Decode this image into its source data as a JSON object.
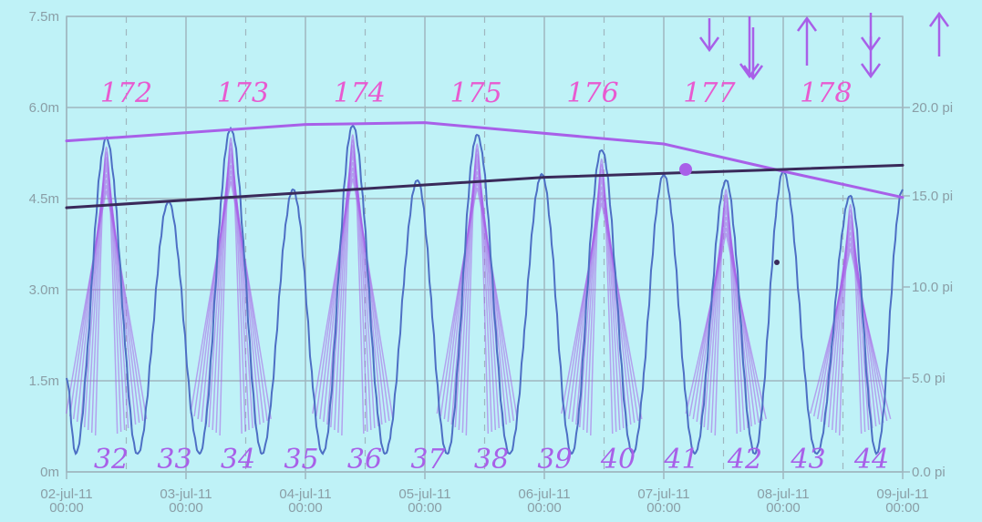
{
  "chart_data": {
    "type": "line",
    "left_axis": {
      "ticks": [
        "0m",
        "1.5m",
        "3.0m",
        "4.5m",
        "6.0m",
        "7.5m"
      ],
      "values": [
        0,
        1.5,
        3.0,
        4.5,
        6.0,
        7.5
      ],
      "ylim": [
        0,
        7.5
      ]
    },
    "right_axis": {
      "ticks": [
        "0.0 pi",
        "5.0 pi",
        "10.0 pi",
        "15.0 pi",
        "20.0 pi"
      ],
      "values": [
        0,
        5,
        10,
        15,
        20
      ]
    },
    "x_ticks": [
      {
        "date": "02-jul-11",
        "time": "00:00"
      },
      {
        "date": "03-jul-11",
        "time": "00:00"
      },
      {
        "date": "04-jul-11",
        "time": "00:00"
      },
      {
        "date": "05-jul-11",
        "time": "00:00"
      },
      {
        "date": "06-jul-11",
        "time": "00:00"
      },
      {
        "date": "07-jul-11",
        "time": "00:00"
      },
      {
        "date": "08-jul-11",
        "time": "00:00"
      },
      {
        "date": "09-jul-11",
        "time": "00:00"
      }
    ],
    "xlim": [
      "2011-07-02 00:00",
      "2011-07-09 00:00"
    ],
    "grid": true,
    "series": [
      {
        "color": "#4d6fc4",
        "high_water_times": [
          "2011-07-02 08:00",
          "2011-07-02 20:30",
          "2011-07-03 09:00",
          "2011-07-03 21:30",
          "2011-07-04 09:30",
          "2011-07-04 22:30",
          "2011-07-05 10:30",
          "2011-07-05 23:30",
          "2011-07-06 11:30",
          "2011-07-07 00:00",
          "2011-07-07 12:30",
          "2011-07-08 00:00",
          "2011-07-08 13:30",
          "2011-07-09 00:00"
        ],
        "high_water_levels_m": [
          5.5,
          4.45,
          5.65,
          4.65,
          5.7,
          4.8,
          5.55,
          4.9,
          5.3,
          4.9,
          4.8,
          4.95,
          4.55,
          4.65
        ],
        "low_water_level_m": 0.3
      }
    ],
    "annotations": {
      "top_numbers": [
        "172",
        "173",
        "174",
        "175",
        "176",
        "177",
        "178"
      ],
      "bottom_numbers": [
        "32",
        "33",
        "34",
        "35",
        "36",
        "37",
        "38",
        "39",
        "40",
        "41",
        "42",
        "43",
        "44"
      ]
    },
    "colors": {
      "background": "#bff2f7",
      "grid": "#9fb6bf",
      "tide": "#4d6fc4",
      "ink_purple": "#a860e8",
      "ink_pink": "#e85ad0",
      "ink_dark": "#3a2a5a"
    }
  }
}
